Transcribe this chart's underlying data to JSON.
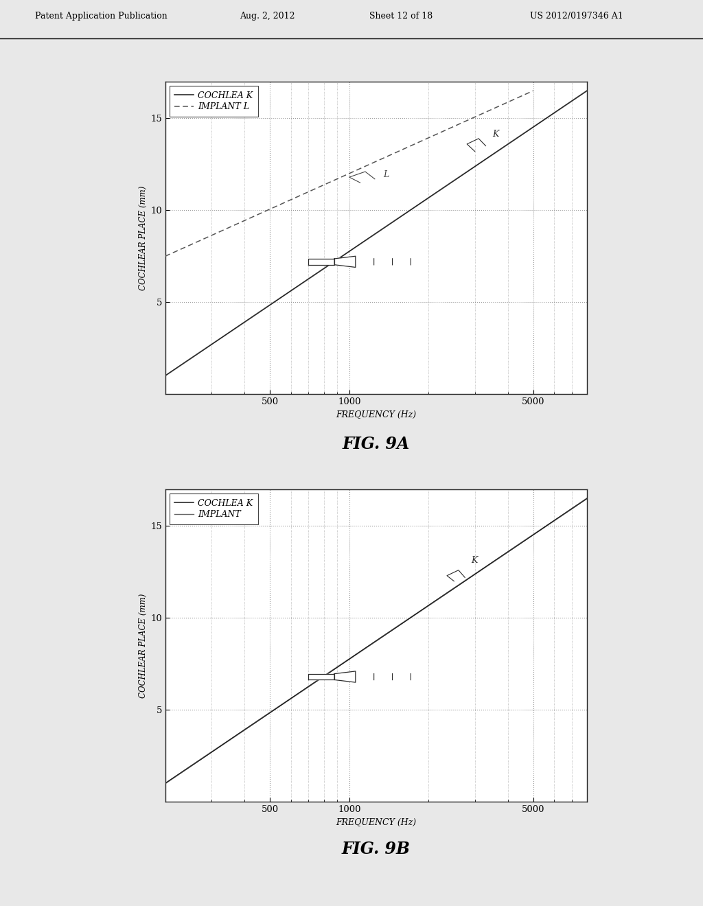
{
  "page_bg": "#e8e8e8",
  "plot_bg": "#ffffff",
  "header_text": "Patent Application Publication",
  "header_date": "Aug. 2, 2012",
  "header_sheet": "Sheet 12 of 18",
  "header_patent": "US 2012/0197346 A1",
  "fig9a_caption": "FIG. 9A",
  "fig9b_caption": "FIG. 9B",
  "xlabel": "FREQUENCY (Hz)",
  "ylabel": "COCHLEAR PLACE (mm)",
  "xticks": [
    500,
    1000,
    5000
  ],
  "xticklabels": [
    "500",
    "1000",
    "5000"
  ],
  "xlim_log": [
    2.30103,
    3.90309
  ],
  "xlim": [
    200,
    8000
  ],
  "ylim": [
    0,
    17
  ],
  "yticks": [
    5,
    10,
    15
  ],
  "yticklabels": [
    "5",
    "10",
    "15"
  ],
  "fig9a_legend1": "COCHLEA K",
  "fig9a_legend2": "IMPLANT L",
  "fig9b_legend1": "COCHLEA K",
  "fig9b_legend2": "IMPLANT",
  "line_color": "#2a2a2a",
  "grid_color": "#999999"
}
